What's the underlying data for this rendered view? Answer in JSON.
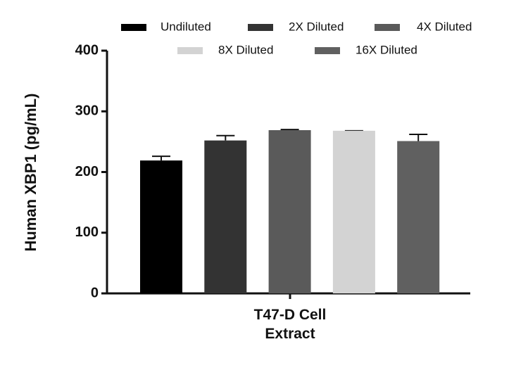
{
  "chart_data": {
    "type": "bar",
    "y_label": "Human XBP1 (pg/mL)",
    "categories": [
      "T47-D Cell Extract"
    ],
    "series": [
      {
        "name": "Undiluted",
        "color": "#000000",
        "values": [
          219
        ],
        "errors": [
          7
        ]
      },
      {
        "name": "2X Diluted",
        "color": "#333333",
        "values": [
          252
        ],
        "errors": [
          8
        ]
      },
      {
        "name": "4X Diluted",
        "color": "#5a5a5a",
        "values": [
          269
        ],
        "errors": [
          1
        ]
      },
      {
        "name": "8X Diluted",
        "color": "#d3d3d3",
        "values": [
          268
        ],
        "errors": [
          0
        ]
      },
      {
        "name": "16X Diluted",
        "color": "#606060",
        "values": [
          251
        ],
        "errors": [
          11
        ]
      }
    ],
    "ylim": [
      0,
      400
    ],
    "yticks": [
      0,
      100,
      200,
      300,
      400
    ],
    "grid": false
  }
}
